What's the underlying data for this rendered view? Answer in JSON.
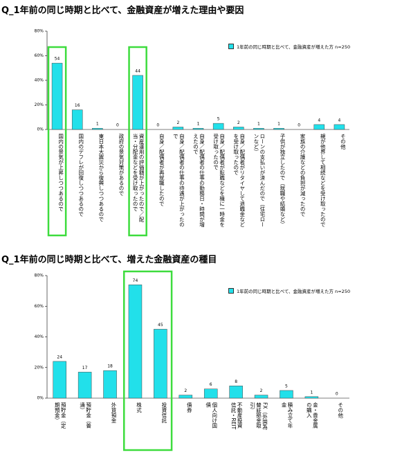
{
  "chart_data": [
    {
      "type": "bar",
      "title": "Q_1年前の同じ時期と比べて、金融資産が増えた理由や要因",
      "categories": [
        "国内の景気が上昇しつつあるので",
        "国内のデフレが回復しつつあるので",
        "東日本大震災から復興しつつあるので",
        "政府の景気対策があるので",
        "資産運用の評価額が上がったので／配当・分配金などを受け取ったので",
        "自身／配偶者が再就職したので",
        "自身／配偶者の仕事の待遇が上がったので",
        "自身／配偶者の仕事の勤務日・時間が増えたので",
        "自身／配偶者が転職などを機に一時金を受け取ったので",
        "自身／配偶者がリタイヤして退職金などを受け取ったので",
        "ローンの支払いが済んだので（住宅ローンなど）",
        "子供が独立したので（就職や結婚など）",
        "家族の介護などの負担が減ったので",
        "親が他界して相続などを受け取ったので",
        "その他"
      ],
      "series": [
        {
          "name": "1年前の同じ時期と比べて、金融資産が増えた方 n=250",
          "color": "#22e0ea",
          "values": [
            54,
            16,
            1,
            0,
            44,
            0,
            2,
            1,
            5,
            2,
            1,
            1,
            0,
            4,
            4
          ]
        }
      ],
      "ylim": [
        0,
        80
      ],
      "yticks": [
        {
          "value": 0,
          "label": "0%"
        },
        {
          "value": 20,
          "label": "20%"
        },
        {
          "value": 40,
          "label": "40%"
        },
        {
          "value": 60,
          "label": "60%"
        },
        {
          "value": 80,
          "label": "80%"
        }
      ]
    },
    {
      "type": "bar",
      "title": "Q_1年前の同じ時期と比べて、増えた金融資産の種目",
      "categories": [
        "預貯金（定期預金）",
        "預貯金（普通）",
        "外貨預金",
        "株式",
        "投資信託",
        "債券",
        "個人向け国債",
        "不動産投資信託・REIT",
        "FX（外国為替証拠金取引）",
        "積み立て年金",
        "金・貴金属の購入",
        "その他"
      ],
      "series": [
        {
          "name": "1年前の同じ時期と比べて、金融資産が増えた方 n=250",
          "color": "#22e0ea",
          "values": [
            24,
            17,
            18,
            74,
            45,
            2,
            6,
            8,
            2,
            5,
            1,
            0
          ]
        }
      ],
      "ylim": [
        0,
        80
      ],
      "yticks": [
        {
          "value": 0,
          "label": "0%"
        },
        {
          "value": 20,
          "label": "20%"
        },
        {
          "value": 40,
          "label": "40%"
        },
        {
          "value": 60,
          "label": "60%"
        },
        {
          "value": 80,
          "label": "80%"
        }
      ]
    }
  ]
}
